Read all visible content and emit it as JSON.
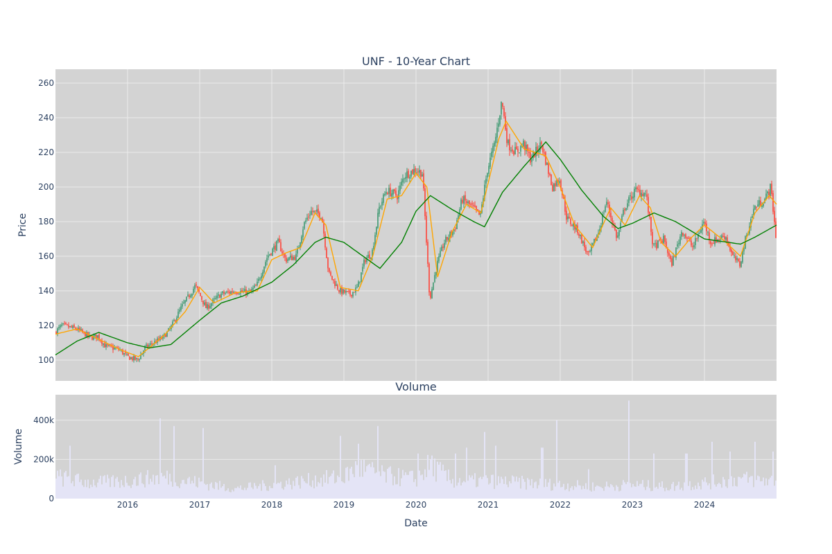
{
  "colors": {
    "plot_bg": "#d3d3d3",
    "grid": "#ebebeb",
    "up": "#3d9970",
    "down": "#ff4136",
    "ma_short": "#ffa500",
    "ma_long": "#008000",
    "volume": "#e6e6fa"
  },
  "chart_data": [
    {
      "type": "candlestick",
      "title": "UNF - 10-Year Chart",
      "ylabel": "Price",
      "ylim": [
        88,
        268
      ],
      "yticks": [
        100,
        120,
        140,
        160,
        180,
        200,
        220,
        240,
        260
      ],
      "xlim": [
        2015.0,
        2025.0
      ],
      "grid": true,
      "candle_resolution": "weekly",
      "price_anchors": [
        [
          2015.0,
          116
        ],
        [
          2015.1,
          120
        ],
        [
          2015.3,
          118
        ],
        [
          2015.5,
          113
        ],
        [
          2015.6,
          114
        ],
        [
          2015.7,
          108
        ],
        [
          2015.9,
          106
        ],
        [
          2016.0,
          102
        ],
        [
          2016.15,
          100
        ],
        [
          2016.25,
          107
        ],
        [
          2016.5,
          113
        ],
        [
          2016.6,
          118
        ],
        [
          2016.75,
          130
        ],
        [
          2016.95,
          143
        ],
        [
          2017.1,
          130
        ],
        [
          2017.3,
          138
        ],
        [
          2017.5,
          140
        ],
        [
          2017.7,
          139
        ],
        [
          2017.8,
          143
        ],
        [
          2017.95,
          160
        ],
        [
          2018.1,
          168
        ],
        [
          2018.2,
          158
        ],
        [
          2018.35,
          160
        ],
        [
          2018.45,
          178
        ],
        [
          2018.55,
          186
        ],
        [
          2018.7,
          184
        ],
        [
          2018.8,
          150
        ],
        [
          2018.95,
          140
        ],
        [
          2019.1,
          138
        ],
        [
          2019.2,
          142
        ],
        [
          2019.3,
          158
        ],
        [
          2019.4,
          162
        ],
        [
          2019.5,
          188
        ],
        [
          2019.6,
          198
        ],
        [
          2019.75,
          195
        ],
        [
          2019.85,
          207
        ],
        [
          2020.0,
          210
        ],
        [
          2020.1,
          208
        ],
        [
          2020.2,
          135
        ],
        [
          2020.3,
          155
        ],
        [
          2020.4,
          168
        ],
        [
          2020.55,
          176
        ],
        [
          2020.65,
          193
        ],
        [
          2020.8,
          188
        ],
        [
          2020.9,
          183
        ],
        [
          2021.0,
          210
        ],
        [
          2021.1,
          225
        ],
        [
          2021.2,
          250
        ],
        [
          2021.28,
          225
        ],
        [
          2021.4,
          220
        ],
        [
          2021.5,
          225
        ],
        [
          2021.6,
          216
        ],
        [
          2021.75,
          225
        ],
        [
          2021.9,
          200
        ],
        [
          2022.0,
          205
        ],
        [
          2022.1,
          182
        ],
        [
          2022.25,
          175
        ],
        [
          2022.4,
          160
        ],
        [
          2022.55,
          175
        ],
        [
          2022.65,
          192
        ],
        [
          2022.8,
          170
        ],
        [
          2022.9,
          188
        ],
        [
          2023.05,
          198
        ],
        [
          2023.2,
          196
        ],
        [
          2023.3,
          165
        ],
        [
          2023.45,
          170
        ],
        [
          2023.55,
          155
        ],
        [
          2023.7,
          175
        ],
        [
          2023.85,
          165
        ],
        [
          2024.0,
          180
        ],
        [
          2024.1,
          168
        ],
        [
          2024.3,
          172
        ],
        [
          2024.4,
          160
        ],
        [
          2024.5,
          155
        ],
        [
          2024.58,
          170
        ],
        [
          2024.7,
          188
        ],
        [
          2024.85,
          193
        ],
        [
          2024.93,
          200
        ],
        [
          2025.0,
          172
        ]
      ],
      "ma_short_anchors": [
        [
          2015.0,
          115
        ],
        [
          2015.3,
          118
        ],
        [
          2015.6,
          112
        ],
        [
          2015.9,
          106
        ],
        [
          2016.15,
          102
        ],
        [
          2016.5,
          114
        ],
        [
          2016.8,
          128
        ],
        [
          2017.0,
          142
        ],
        [
          2017.2,
          133
        ],
        [
          2017.5,
          139
        ],
        [
          2017.8,
          140
        ],
        [
          2018.0,
          158
        ],
        [
          2018.2,
          162
        ],
        [
          2018.4,
          165
        ],
        [
          2018.6,
          185
        ],
        [
          2018.75,
          178
        ],
        [
          2018.95,
          142
        ],
        [
          2019.2,
          140
        ],
        [
          2019.4,
          160
        ],
        [
          2019.6,
          193
        ],
        [
          2019.8,
          195
        ],
        [
          2020.0,
          208
        ],
        [
          2020.15,
          200
        ],
        [
          2020.3,
          148
        ],
        [
          2020.5,
          174
        ],
        [
          2020.7,
          190
        ],
        [
          2020.9,
          185
        ],
        [
          2021.15,
          228
        ],
        [
          2021.25,
          238
        ],
        [
          2021.5,
          222
        ],
        [
          2021.8,
          218
        ],
        [
          2022.0,
          200
        ],
        [
          2022.2,
          178
        ],
        [
          2022.45,
          165
        ],
        [
          2022.7,
          188
        ],
        [
          2022.9,
          178
        ],
        [
          2023.1,
          195
        ],
        [
          2023.25,
          188
        ],
        [
          2023.4,
          168
        ],
        [
          2023.6,
          160
        ],
        [
          2023.8,
          170
        ],
        [
          2024.0,
          178
        ],
        [
          2024.3,
          168
        ],
        [
          2024.5,
          160
        ],
        [
          2024.7,
          185
        ],
        [
          2024.9,
          195
        ],
        [
          2025.0,
          190
        ]
      ],
      "ma_long_anchors": [
        [
          2015.0,
          103
        ],
        [
          2015.3,
          111
        ],
        [
          2015.6,
          116
        ],
        [
          2016.0,
          110
        ],
        [
          2016.3,
          107
        ],
        [
          2016.6,
          109
        ],
        [
          2017.0,
          123
        ],
        [
          2017.3,
          133
        ],
        [
          2017.6,
          137
        ],
        [
          2018.0,
          145
        ],
        [
          2018.3,
          155
        ],
        [
          2018.6,
          168
        ],
        [
          2018.75,
          171
        ],
        [
          2019.0,
          168
        ],
        [
          2019.5,
          153
        ],
        [
          2019.8,
          168
        ],
        [
          2020.0,
          186
        ],
        [
          2020.2,
          195
        ],
        [
          2020.5,
          187
        ],
        [
          2020.8,
          180
        ],
        [
          2020.95,
          177
        ],
        [
          2021.2,
          197
        ],
        [
          2021.5,
          212
        ],
        [
          2021.8,
          226
        ],
        [
          2022.0,
          216
        ],
        [
          2022.3,
          198
        ],
        [
          2022.6,
          183
        ],
        [
          2022.8,
          176
        ],
        [
          2023.0,
          179
        ],
        [
          2023.3,
          185
        ],
        [
          2023.6,
          180
        ],
        [
          2024.0,
          170
        ],
        [
          2024.5,
          167
        ],
        [
          2024.7,
          171
        ],
        [
          2025.0,
          178
        ]
      ]
    },
    {
      "type": "bar",
      "title": "Volume",
      "ylabel": "Volume",
      "xlabel": "Date",
      "ylim": [
        0,
        530000
      ],
      "yticks": [
        0,
        200000,
        400000
      ],
      "yticklabels": [
        "0",
        "200k",
        "400k"
      ],
      "xticks": [
        2016,
        2017,
        2018,
        2019,
        2020,
        2021,
        2022,
        2023,
        2024
      ],
      "xticklabels": [
        "2016",
        "2017",
        "2018",
        "2019",
        "2020",
        "2021",
        "2022",
        "2023",
        "2024"
      ],
      "bar_resolution": "weekly",
      "base_anchors": [
        [
          2015.0,
          110000
        ],
        [
          2015.5,
          80000
        ],
        [
          2016.0,
          90000
        ],
        [
          2016.5,
          110000
        ],
        [
          2017.0,
          80000
        ],
        [
          2017.5,
          50000
        ],
        [
          2018.0,
          70000
        ],
        [
          2018.5,
          90000
        ],
        [
          2019.0,
          110000
        ],
        [
          2019.2,
          160000
        ],
        [
          2019.5,
          120000
        ],
        [
          2020.0,
          100000
        ],
        [
          2020.2,
          170000
        ],
        [
          2020.5,
          90000
        ],
        [
          2021.0,
          90000
        ],
        [
          2021.5,
          80000
        ],
        [
          2022.0,
          70000
        ],
        [
          2022.5,
          60000
        ],
        [
          2023.0,
          70000
        ],
        [
          2023.5,
          60000
        ],
        [
          2024.0,
          80000
        ],
        [
          2024.5,
          100000
        ],
        [
          2025.0,
          90000
        ]
      ],
      "spikes": [
        [
          2015.2,
          270000
        ],
        [
          2016.45,
          410000
        ],
        [
          2016.65,
          370000
        ],
        [
          2017.05,
          360000
        ],
        [
          2018.05,
          170000
        ],
        [
          2018.95,
          320000
        ],
        [
          2019.2,
          280000
        ],
        [
          2019.48,
          370000
        ],
        [
          2020.02,
          230000
        ],
        [
          2020.22,
          220000
        ],
        [
          2020.55,
          230000
        ],
        [
          2020.7,
          260000
        ],
        [
          2020.95,
          340000
        ],
        [
          2021.1,
          270000
        ],
        [
          2021.75,
          260000
        ],
        [
          2021.95,
          400000
        ],
        [
          2022.4,
          150000
        ],
        [
          2022.95,
          500000
        ],
        [
          2023.3,
          230000
        ],
        [
          2023.75,
          230000
        ],
        [
          2024.1,
          290000
        ],
        [
          2024.35,
          240000
        ],
        [
          2024.7,
          290000
        ],
        [
          2024.95,
          240000
        ]
      ]
    }
  ]
}
